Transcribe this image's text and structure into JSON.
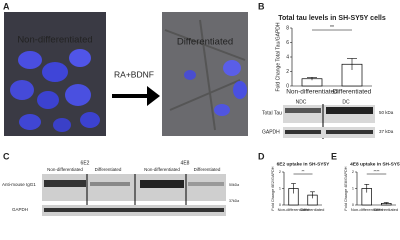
{
  "panel_a": {
    "label": "A",
    "left_caption": "Non-differentiated",
    "right_caption": "Differentiated",
    "treatment": "RA+BDNF"
  },
  "panel_b": {
    "label": "B",
    "title": "Total tau levels in SH-SY5Y cells",
    "y_label": "Fold Change Total Tau/GAPDH",
    "categories": [
      "Non-differentiated",
      "Differentiated"
    ],
    "values": [
      1.0,
      3.0
    ],
    "errors": [
      0.2,
      0.8
    ],
    "bar_color": "#ffffff",
    "edge_color": "#000000",
    "ylim": [
      0,
      8
    ],
    "yticks": [
      0,
      2,
      4,
      6,
      8
    ],
    "significance": "**",
    "blot": {
      "lanes": [
        "NDC",
        "DC"
      ],
      "rows": [
        "Total Tau",
        "GAPDH"
      ],
      "markers": [
        "50 kDa",
        "37 kDa"
      ]
    }
  },
  "panel_c": {
    "label": "C",
    "antibodies": [
      "6E2",
      "4E8"
    ],
    "conditions": [
      "Non-differentiated",
      "Differentiated",
      "Non-differentiated",
      "Differentiated"
    ],
    "rows": [
      "Anti-mouse IgG1",
      "GAPDH"
    ],
    "markers": [
      "50kDa",
      "37kDa"
    ]
  },
  "panel_d": {
    "label": "D",
    "title": "6E2 uptake in SH-SY5Y",
    "y_label": "Fold Change 6E2/GAPDH",
    "categories": [
      "Non-differentiated",
      "Differentiated"
    ],
    "values": [
      1.0,
      0.6
    ],
    "errors": [
      0.3,
      0.2
    ],
    "bar_color": "#ffffff",
    "edge_color": "#000000",
    "ylim": [
      0,
      2
    ],
    "yticks": [
      0,
      1,
      2
    ],
    "significance": "**"
  },
  "panel_e": {
    "label": "E",
    "title": "4E8 uptake in SH-SY5Y",
    "y_label": "Fold Change 4E8/GAPDH",
    "categories": [
      "Non-differentiated",
      "Differentiated"
    ],
    "values": [
      1.0,
      0.1
    ],
    "errors": [
      0.25,
      0.05
    ],
    "bar_color": "#ffffff",
    "edge_color": "#000000",
    "ylim": [
      0,
      2
    ],
    "yticks": [
      0,
      1,
      2
    ],
    "significance": "****"
  }
}
